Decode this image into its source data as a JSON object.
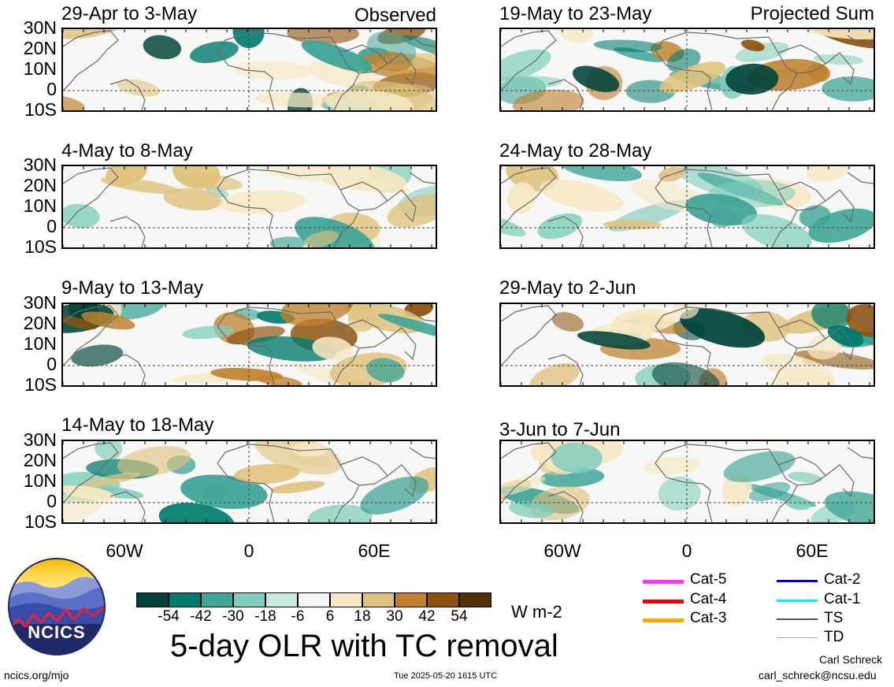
{
  "panels_left": [
    {
      "title": "29-Apr to 3-May",
      "tag": "Observed"
    },
    {
      "title": "4-May to 8-May",
      "tag": ""
    },
    {
      "title": "9-May to 13-May",
      "tag": ""
    },
    {
      "title": "14-May to 18-May",
      "tag": ""
    }
  ],
  "panels_right": [
    {
      "title": "19-May to 23-May",
      "tag": "Projected Sum"
    },
    {
      "title": "24-May to 28-May",
      "tag": ""
    },
    {
      "title": "29-May to 2-Jun",
      "tag": ""
    },
    {
      "title": "3-Jun to 7-Jun",
      "tag": ""
    }
  ],
  "lat_labels": [
    "30N",
    "20N",
    "10N",
    "0",
    "10S"
  ],
  "lon_labels": [
    "60W",
    "0",
    "60E"
  ],
  "colorbar": {
    "colors": [
      "#00433a",
      "#007b6e",
      "#3ea597",
      "#7fcdbb",
      "#c7e9e0",
      "#f5f5f5",
      "#f6e8c3",
      "#dfc27d",
      "#bf812d",
      "#8c510a",
      "#543005"
    ],
    "labels": [
      "-54",
      "-42",
      "-30",
      "-18",
      "-6",
      "6",
      "18",
      "30",
      "42",
      "54"
    ],
    "units": "W m-2"
  },
  "tc_legend": [
    {
      "label": "Cat-5",
      "color": "#ff33ff"
    },
    {
      "label": "Cat-4",
      "color": "#ee0000"
    },
    {
      "label": "Cat-3",
      "color": "#ffa500"
    },
    {
      "label": "Cat-2",
      "color": "#0000cc"
    },
    {
      "label": "Cat-1",
      "color": "#00eeee"
    },
    {
      "label": "TS",
      "color": "#555555"
    },
    {
      "label": "TD",
      "color": "#aaaaaa"
    }
  ],
  "logo": {
    "text": "NCICS"
  },
  "main_title": "5-day OLR with TC removal",
  "footer": {
    "site": "ncics.org/mjo",
    "timestamp": "Tue 2025-05-20 1615 UTC",
    "author": "Carl Schreck",
    "email": "carl_schreck@ncsu.edu"
  }
}
